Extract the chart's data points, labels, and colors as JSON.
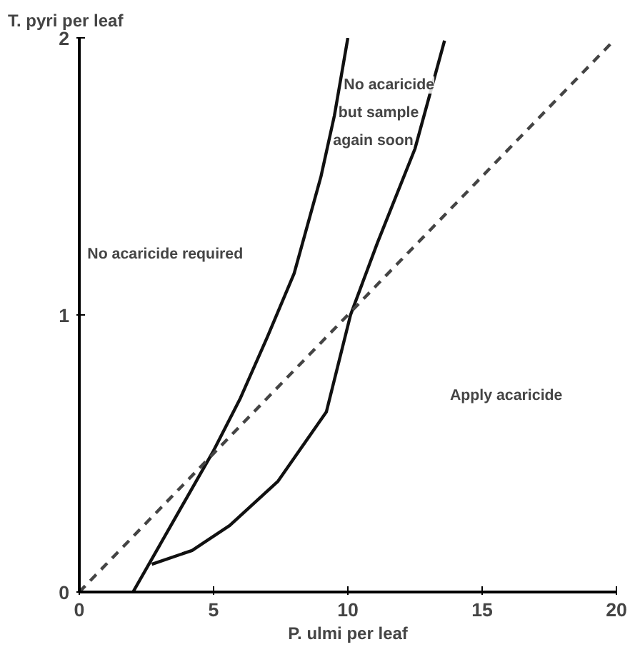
{
  "chart_data": {
    "type": "line",
    "xlabel": "P. ulmi per leaf",
    "ylabel": "T. pyri per leaf",
    "xlim": [
      0,
      20
    ],
    "ylim": [
      0,
      2
    ],
    "xticks": [
      0,
      5,
      10,
      15,
      20
    ],
    "yticks": [
      0,
      1,
      2
    ],
    "grid": false,
    "marker": "none",
    "series": [
      {
        "color": "#111111",
        "line_style": "solid",
        "x": [
          2,
          3,
          4,
          5,
          6,
          7,
          8,
          9,
          9.5,
          10
        ],
        "values": [
          0,
          0.17,
          0.34,
          0.51,
          0.7,
          0.92,
          1.15,
          1.5,
          1.72,
          2.0
        ]
      },
      {
        "color": "#111111",
        "line_style": "solid",
        "x": [
          2.7,
          4.2,
          5.6,
          7.4,
          9.2,
          10.1,
          11.1,
          12.5,
          13.6
        ],
        "values": [
          0.1,
          0.15,
          0.24,
          0.4,
          0.65,
          1.0,
          1.26,
          1.6,
          1.99
        ]
      },
      {
        "color": "#444444",
        "line_style": "dashed",
        "x": [
          0,
          19.8
        ],
        "values": [
          0,
          1.98
        ]
      }
    ],
    "annotations": [
      "No acaricide required",
      "No acaricide",
      "but sample",
      "again soon",
      "Apply acaricide"
    ]
  }
}
